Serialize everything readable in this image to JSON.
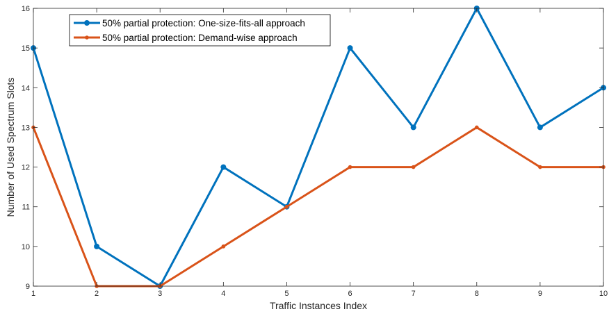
{
  "chart_data": {
    "type": "line",
    "title": "",
    "xlabel": "Traffic Instances Index",
    "ylabel": "Number of Used Spectrum Slots",
    "x": [
      1,
      2,
      3,
      4,
      5,
      6,
      7,
      8,
      9,
      10
    ],
    "xlim": [
      1,
      10
    ],
    "ylim": [
      9,
      16
    ],
    "xticks": [
      1,
      2,
      3,
      4,
      5,
      6,
      7,
      8,
      9,
      10
    ],
    "yticks": [
      9,
      10,
      11,
      12,
      13,
      14,
      15,
      16
    ],
    "grid": false,
    "legend_position": "top-left",
    "series": [
      {
        "name": "50% partial protection: One-size-fits-all approach",
        "color": "#0072BD",
        "marker": "filled-circle",
        "values": [
          15,
          10,
          9,
          12,
          11,
          15,
          13,
          16,
          13,
          14
        ]
      },
      {
        "name": "50% partial protection: Demand-wise approach",
        "color": "#D95319",
        "marker": "filled-dot",
        "values": [
          13,
          9,
          9,
          10,
          11,
          12,
          12,
          13,
          12,
          12
        ]
      }
    ]
  }
}
